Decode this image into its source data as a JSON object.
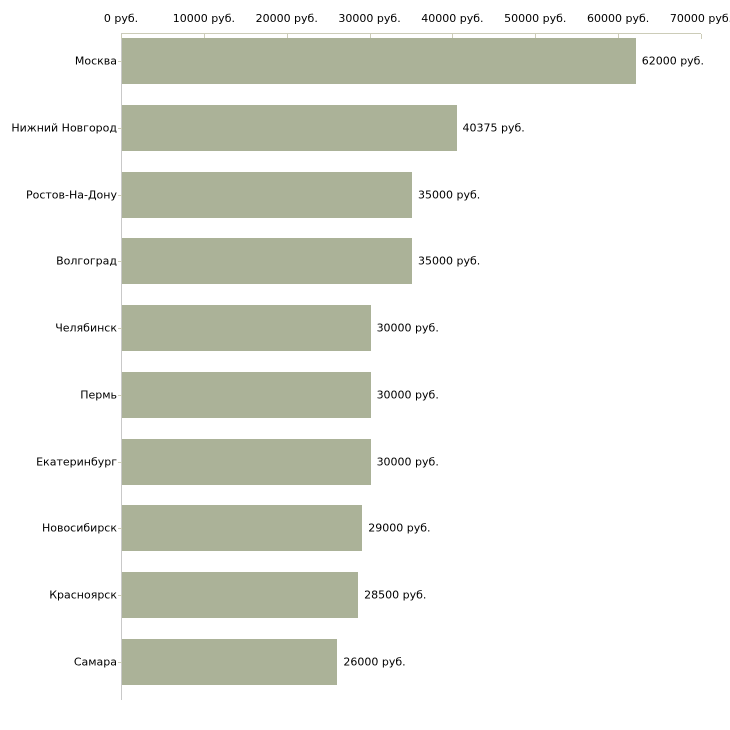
{
  "chart_data": {
    "type": "bar",
    "orientation": "horizontal",
    "title": "",
    "xlabel": "",
    "ylabel": "",
    "categories": [
      "Москва",
      "Нижний Новгород",
      "Ростов-На-Дону",
      "Волгоград",
      "Челябинск",
      "Пермь",
      "Екатеринбург",
      "Новосибирск",
      "Красноярск",
      "Самара"
    ],
    "values": [
      62000,
      40375,
      35000,
      35000,
      30000,
      30000,
      30000,
      29000,
      28500,
      26000
    ],
    "value_labels": [
      "62000 руб.",
      "40375 руб.",
      "35000 руб.",
      "35000 руб.",
      "30000 руб.",
      "30000 руб.",
      "30000 руб.",
      "29000 руб.",
      "28500 руб.",
      "26000 руб."
    ],
    "x_tick_values": [
      0,
      10000,
      20000,
      30000,
      40000,
      50000,
      60000,
      70000
    ],
    "x_tick_labels": [
      "0 руб.",
      "10000 руб.",
      "20000 руб.",
      "30000 руб.",
      "40000 руб.",
      "50000 руб.",
      "60000 руб.",
      "70000 руб."
    ],
    "xlim": [
      0,
      70000
    ],
    "unit": "руб.",
    "grid": false,
    "legend": null,
    "colors": {
      "bar_fill": "#abb298",
      "axis_line": "#c9c9c9",
      "tick_line": "#ccccb8",
      "text": "#000000",
      "background": "#ffffff"
    }
  }
}
